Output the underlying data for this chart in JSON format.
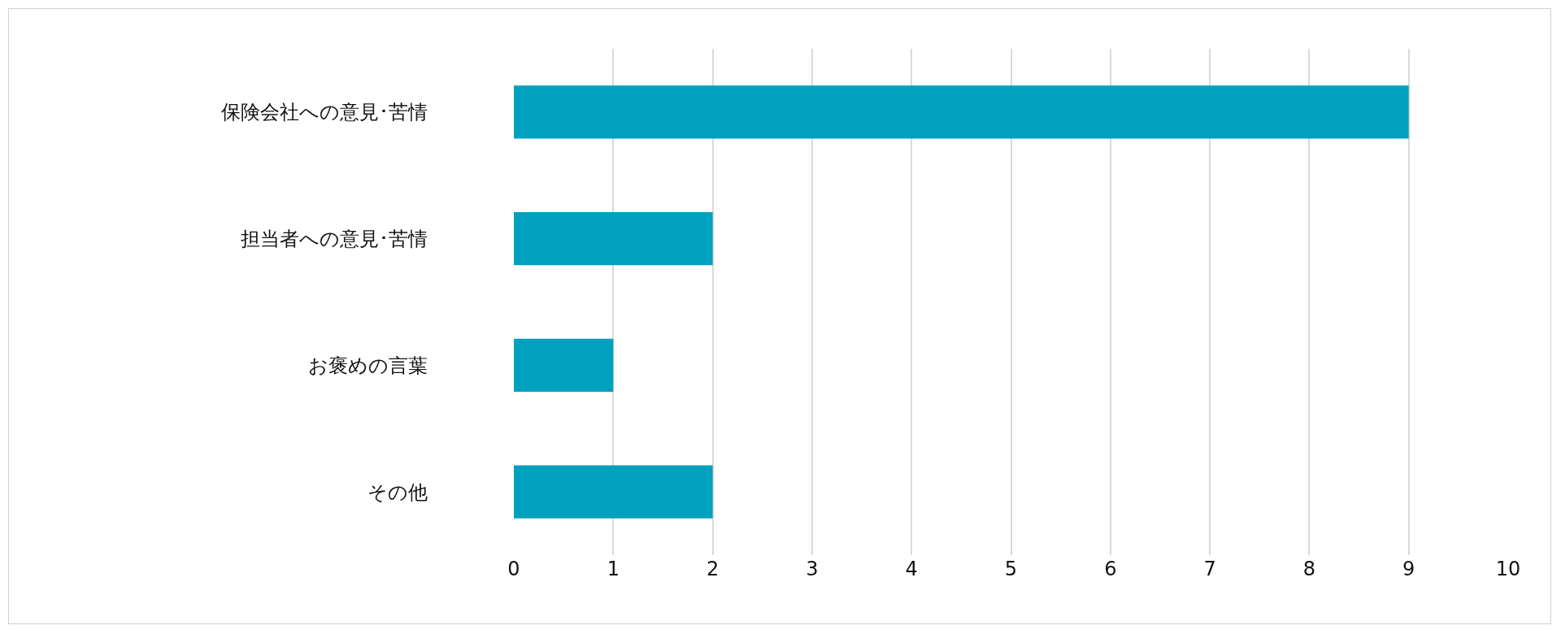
{
  "chart_data": {
    "type": "bar",
    "orientation": "horizontal",
    "categories": [
      "保険会社への意見･苦情",
      "担当者への意見･苦情",
      "お褒めの言葉",
      "その他"
    ],
    "values": [
      9,
      2,
      1,
      2
    ],
    "color": "#00a0bf",
    "xlim": [
      0,
      10
    ],
    "xticks": [
      0,
      1,
      2,
      3,
      4,
      5,
      6,
      7,
      8,
      9,
      10
    ],
    "grid": "x"
  }
}
